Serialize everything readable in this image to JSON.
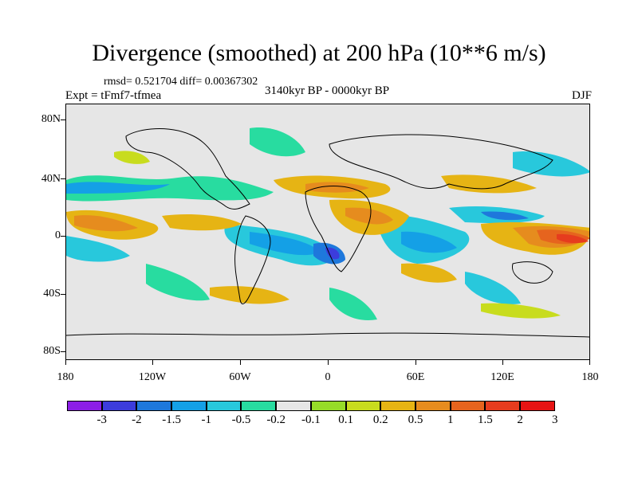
{
  "title": "Divergence (smoothed) at 200 hPa (10**6 m/s)",
  "stats": "rmsd= 0.521704  diff= 0.00367302",
  "experiment": "Expt = tFmf7-tfmea",
  "period": "3140kyr BP - 0000kyr BP",
  "season": "DJF",
  "latitude_labels": [
    "80N",
    "40N",
    "0",
    "40S",
    "80S"
  ],
  "longitude_labels": [
    "180",
    "120W",
    "60W",
    "0",
    "60E",
    "120E",
    "180"
  ],
  "colorbar": {
    "labels": [
      "-3",
      "-2",
      "-1.5",
      "-1",
      "-0.5",
      "-0.2",
      "-0.1",
      "0.1",
      "0.2",
      "0.5",
      "1",
      "1.5",
      "2",
      "3"
    ],
    "colors": [
      "#8c1ee6",
      "#3c3cdc",
      "#1e78dc",
      "#14a0e6",
      "#28c8dc",
      "#28dca0",
      "#e6e6e6",
      "#96dc28",
      "#c8dc1e",
      "#e6b414",
      "#e68c1e",
      "#e6641e",
      "#e63c1e",
      "#e61414"
    ]
  }
}
